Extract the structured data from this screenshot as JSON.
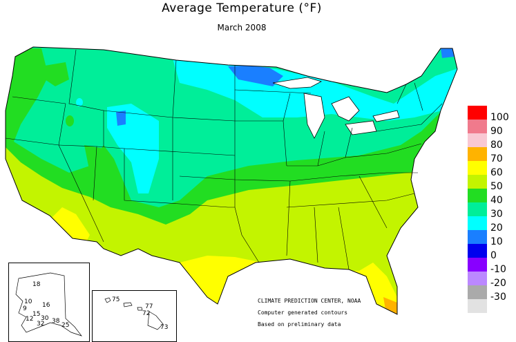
{
  "header": {
    "title": "Average Temperature (°F)",
    "subtitle": "March 2008"
  },
  "legend": [
    {
      "label": "100",
      "color": "#ff0000"
    },
    {
      "label": "90",
      "color": "#f07a8c"
    },
    {
      "label": "80",
      "color": "#f9c8d3"
    },
    {
      "label": "70",
      "color": "#ffb300"
    },
    {
      "label": "60",
      "color": "#ffff00"
    },
    {
      "label": "50",
      "color": "#c3f400"
    },
    {
      "label": "40",
      "color": "#22dd22"
    },
    {
      "label": "30",
      "color": "#00ee99"
    },
    {
      "label": "20",
      "color": "#00ffff"
    },
    {
      "label": "10",
      "color": "#1a7fff"
    },
    {
      "label": "0",
      "color": "#0000ee"
    },
    {
      "label": "-10",
      "color": "#8800ff"
    },
    {
      "label": "-20",
      "color": "#bb88ff"
    },
    {
      "label": "-30",
      "color": "#aaaaaa"
    },
    {
      "label": "",
      "color": "#e2e2e2"
    }
  ],
  "credits": {
    "line1": "CLIMATE PREDICTION CENTER, NOAA",
    "line2": "Computer generated contours",
    "line3": "Based on preliminary data"
  },
  "alaska_labels": [
    "18",
    "10",
    "9",
    "16",
    "15",
    "30",
    "12",
    "32",
    "38",
    "25"
  ],
  "hawaii_labels": [
    "75",
    "77",
    "72",
    "73"
  ]
}
